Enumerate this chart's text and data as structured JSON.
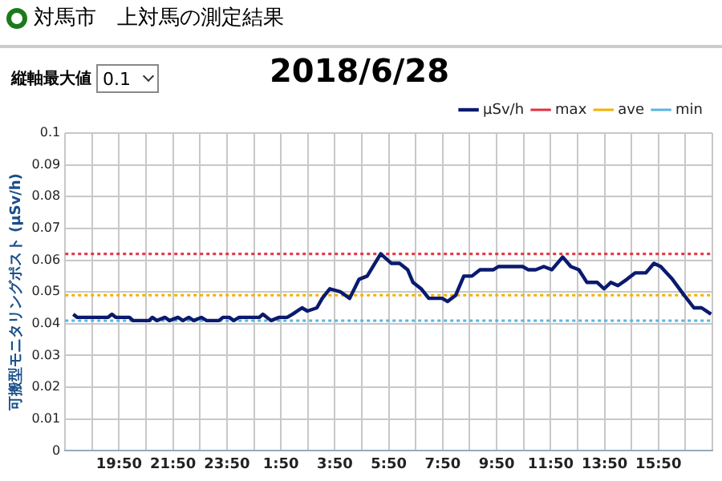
{
  "chart_data": {
    "type": "line",
    "title": "2018/6/28",
    "ylabel": "可搬型モニタリングポスト (μSv/h)",
    "annotations": [
      "対馬市　上対馬の測定結果",
      "縦軸最大値",
      "0.1"
    ],
    "x": [
      "2018-06-27T18:08",
      "2018-06-27T18:17",
      "2018-06-27T19:25",
      "2018-06-27T19:34",
      "2018-06-27T19:43",
      "2018-06-27T20:13",
      "2018-06-27T20:21",
      "2018-06-27T20:57",
      "2018-06-27T21:04",
      "2018-06-27T21:14",
      "2018-06-27T21:32",
      "2018-06-27T21:42",
      "2018-06-27T22:01",
      "2018-06-27T22:12",
      "2018-06-27T22:25",
      "2018-06-27T22:36",
      "2018-06-27T22:53",
      "2018-06-27T23:05",
      "2018-06-27T23:32",
      "2018-06-27T23:41",
      "2018-06-27T23:55",
      "2018-06-28T00:05",
      "2018-06-28T00:17",
      "2018-06-28T01:02",
      "2018-06-28T01:10",
      "2018-06-28T01:28",
      "2018-06-28T01:46",
      "2018-06-28T02:04",
      "2018-06-28T02:16",
      "2018-06-28T02:37",
      "2018-06-28T02:49",
      "2018-06-28T03:10",
      "2018-06-28T03:22",
      "2018-06-28T03:39",
      "2018-06-28T04:03",
      "2018-06-28T04:23",
      "2018-06-28T04:44",
      "2018-06-28T05:02",
      "2018-06-28T05:32",
      "2018-06-28T05:56",
      "2018-06-28T06:14",
      "2018-06-28T06:32",
      "2018-06-28T06:44",
      "2018-06-28T07:02",
      "2018-06-28T07:19",
      "2018-06-28T07:49",
      "2018-06-28T08:01",
      "2018-06-28T08:19",
      "2018-06-28T08:37",
      "2018-06-28T08:55",
      "2018-06-28T09:13",
      "2018-06-28T09:43",
      "2018-06-28T09:54",
      "2018-06-28T10:48",
      "2018-06-28T11:00",
      "2018-06-28T11:17",
      "2018-06-28T11:35",
      "2018-06-28T11:53",
      "2018-06-28T12:17",
      "2018-06-28T12:35",
      "2018-06-28T12:53",
      "2018-06-28T13:11",
      "2018-06-28T13:34",
      "2018-06-28T13:49",
      "2018-06-28T14:04",
      "2018-06-28T14:20",
      "2018-06-28T14:40",
      "2018-06-28T14:58",
      "2018-06-28T15:22",
      "2018-06-28T15:40",
      "2018-06-28T15:55",
      "2018-06-28T16:21",
      "2018-06-28T16:47",
      "2018-06-28T17:09",
      "2018-06-28T17:26",
      "2018-06-28T17:47"
    ],
    "series": [
      {
        "name": "μSv/h",
        "color": "#0a1a6e",
        "values": [
          0.043,
          0.042,
          0.042,
          0.043,
          0.042,
          0.042,
          0.041,
          0.041,
          0.042,
          0.041,
          0.042,
          0.041,
          0.042,
          0.041,
          0.042,
          0.041,
          0.042,
          0.041,
          0.041,
          0.042,
          0.042,
          0.041,
          0.042,
          0.042,
          0.043,
          0.041,
          0.042,
          0.042,
          0.043,
          0.045,
          0.044,
          0.045,
          0.048,
          0.051,
          0.05,
          0.048,
          0.054,
          0.055,
          0.062,
          0.059,
          0.059,
          0.057,
          0.053,
          0.051,
          0.048,
          0.048,
          0.047,
          0.049,
          0.055,
          0.055,
          0.057,
          0.057,
          0.058,
          0.058,
          0.057,
          0.057,
          0.058,
          0.057,
          0.061,
          0.058,
          0.057,
          0.053,
          0.053,
          0.051,
          0.053,
          0.052,
          0.054,
          0.056,
          0.056,
          0.059,
          0.058,
          0.054,
          0.049,
          0.045,
          0.045,
          0.043
        ]
      }
    ],
    "ref_lines": [
      {
        "axis": "y",
        "value": 0.062,
        "label": "max",
        "color": "#e03040",
        "line_style": "dotted"
      },
      {
        "axis": "y",
        "value": 0.049,
        "label": "ave",
        "color": "#f5b000",
        "line_style": "dotted"
      },
      {
        "axis": "y",
        "value": 0.041,
        "label": "min",
        "color": "#5ab4e0",
        "line_style": "dotted"
      }
    ],
    "xlim": [
      "2018-06-27T17:50",
      "2018-06-28T17:50"
    ],
    "xticks": [
      {
        "value": "2018-06-27T17:50",
        "label": null
      },
      {
        "value": "2018-06-27T18:50",
        "label": null
      },
      {
        "value": "2018-06-27T19:50",
        "label": "19:50"
      },
      {
        "value": "2018-06-27T20:50",
        "label": null
      },
      {
        "value": "2018-06-27T21:50",
        "label": "21:50"
      },
      {
        "value": "2018-06-27T22:50",
        "label": null
      },
      {
        "value": "2018-06-27T23:50",
        "label": "23:50"
      },
      {
        "value": "2018-06-28T00:50",
        "label": null
      },
      {
        "value": "2018-06-28T01:50",
        "label": "1:50"
      },
      {
        "value": "2018-06-28T02:50",
        "label": null
      },
      {
        "value": "2018-06-28T03:50",
        "label": "3:50"
      },
      {
        "value": "2018-06-28T04:50",
        "label": null
      },
      {
        "value": "2018-06-28T05:50",
        "label": "5:50"
      },
      {
        "value": "2018-06-28T06:50",
        "label": null
      },
      {
        "value": "2018-06-28T07:50",
        "label": "7:50"
      },
      {
        "value": "2018-06-28T08:50",
        "label": null
      },
      {
        "value": "2018-06-28T09:50",
        "label": "9:50"
      },
      {
        "value": "2018-06-28T10:50",
        "label": null
      },
      {
        "value": "2018-06-28T11:50",
        "label": "11:50"
      },
      {
        "value": "2018-06-28T12:50",
        "label": null
      },
      {
        "value": "2018-06-28T13:50",
        "label": "13:50"
      },
      {
        "value": "2018-06-28T14:50",
        "label": null
      },
      {
        "value": "2018-06-28T15:50",
        "label": "15:50"
      },
      {
        "value": "2018-06-28T16:50",
        "label": null
      },
      {
        "value": "2018-06-28T17:50",
        "label": null
      }
    ],
    "ylim": [
      0,
      0.1
    ],
    "yticks": [
      0,
      0.01,
      0.02,
      0.03,
      0.04,
      0.05,
      0.06,
      0.07,
      0.08,
      0.09,
      0.1
    ],
    "grid": true,
    "legend": "top right",
    "marker": "none",
    "line_style": "solid"
  }
}
